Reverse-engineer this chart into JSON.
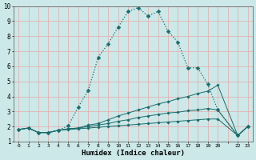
{
  "xlabel": "Humidex (Indice chaleur)",
  "bg_color": "#cce8e8",
  "grid_color": "#e8a8a8",
  "line_color": "#1a6b6b",
  "xlim": [
    -0.5,
    23.5
  ],
  "ylim": [
    1,
    10
  ],
  "series": [
    {
      "x": [
        0,
        1,
        2,
        3,
        4,
        5,
        6,
        7,
        8,
        9,
        10,
        11,
        12,
        13,
        14,
        15,
        16,
        17,
        18,
        19,
        20,
        22,
        23
      ],
      "y": [
        1.8,
        1.9,
        1.6,
        1.6,
        1.75,
        2.05,
        3.3,
        4.4,
        6.6,
        7.5,
        8.6,
        9.65,
        9.9,
        9.35,
        9.65,
        8.35,
        7.6,
        5.9,
        5.9,
        4.8,
        3.1,
        1.4,
        2.0
      ],
      "linestyle": "dotted",
      "linewidth": 0.9,
      "markersize": 2.5
    },
    {
      "x": [
        0,
        1,
        2,
        3,
        4,
        5,
        6,
        7,
        8,
        9,
        10,
        11,
        12,
        13,
        14,
        15,
        16,
        17,
        18,
        19,
        20,
        22,
        23
      ],
      "y": [
        1.8,
        1.9,
        1.6,
        1.6,
        1.75,
        1.85,
        1.9,
        2.1,
        2.2,
        2.45,
        2.7,
        2.9,
        3.1,
        3.3,
        3.5,
        3.65,
        3.85,
        4.0,
        4.2,
        4.35,
        4.75,
        1.4,
        2.0
      ],
      "linestyle": "solid",
      "linewidth": 0.7,
      "markersize": 1.8
    },
    {
      "x": [
        0,
        1,
        2,
        3,
        4,
        5,
        6,
        7,
        8,
        9,
        10,
        11,
        12,
        13,
        14,
        15,
        16,
        17,
        18,
        19,
        20,
        22,
        23
      ],
      "y": [
        1.8,
        1.9,
        1.6,
        1.6,
        1.75,
        1.85,
        1.9,
        2.0,
        2.1,
        2.2,
        2.35,
        2.45,
        2.6,
        2.7,
        2.8,
        2.9,
        2.95,
        3.05,
        3.1,
        3.2,
        3.1,
        1.4,
        2.0
      ],
      "linestyle": "solid",
      "linewidth": 0.7,
      "markersize": 1.8
    },
    {
      "x": [
        0,
        1,
        2,
        3,
        4,
        5,
        6,
        7,
        8,
        9,
        10,
        11,
        12,
        13,
        14,
        15,
        16,
        17,
        18,
        19,
        20,
        22,
        23
      ],
      "y": [
        1.8,
        1.9,
        1.6,
        1.6,
        1.75,
        1.8,
        1.85,
        1.9,
        1.95,
        2.0,
        2.05,
        2.1,
        2.15,
        2.2,
        2.25,
        2.3,
        2.35,
        2.4,
        2.45,
        2.5,
        2.5,
        1.4,
        2.0
      ],
      "linestyle": "solid",
      "linewidth": 0.7,
      "markersize": 1.8
    }
  ],
  "xtick_pos": [
    0,
    1,
    2,
    3,
    4,
    5,
    6,
    7,
    8,
    9,
    10,
    11,
    12,
    13,
    14,
    15,
    16,
    17,
    18,
    19,
    20,
    21,
    22,
    23
  ],
  "xtick_labels": [
    "0",
    "1",
    "2",
    "3",
    "4",
    "5",
    "6",
    "7",
    "8",
    "9",
    "10",
    "11",
    "12",
    "13",
    "14",
    "15",
    "16",
    "17",
    "18",
    "19",
    "20",
    "",
    "22",
    "23"
  ],
  "ytick_pos": [
    1,
    2,
    3,
    4,
    5,
    6,
    7,
    8,
    9,
    10
  ],
  "ytick_labels": [
    "1",
    "2",
    "3",
    "4",
    "5",
    "6",
    "7",
    "8",
    "9",
    "10"
  ]
}
